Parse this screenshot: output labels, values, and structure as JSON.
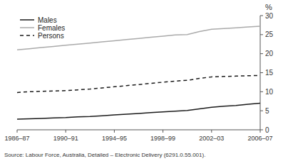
{
  "chart_data": {
    "type": "line",
    "x": [
      1987,
      1988,
      1989,
      1990,
      1991,
      1992,
      1993,
      1994,
      1995,
      1996,
      1997,
      1998,
      1999,
      2000,
      2001,
      2002,
      2003,
      2004,
      2005,
      2006,
      2007
    ],
    "series": [
      {
        "name": "Males",
        "color": "#1a1a1a",
        "line_style": "solid",
        "values": [
          2.8,
          2.9,
          3.0,
          3.1,
          3.2,
          3.4,
          3.5,
          3.7,
          3.9,
          4.1,
          4.3,
          4.5,
          4.7,
          4.9,
          5.1,
          5.5,
          5.9,
          6.2,
          6.4,
          6.7,
          7.0
        ]
      },
      {
        "name": "Females",
        "color": "#aaaaaa",
        "line_style": "solid",
        "values": [
          21.0,
          21.3,
          21.6,
          21.9,
          22.2,
          22.5,
          22.8,
          23.1,
          23.4,
          23.7,
          24.0,
          24.3,
          24.6,
          24.9,
          25.0,
          25.8,
          26.4,
          26.6,
          26.8,
          27.0,
          27.2
        ]
      },
      {
        "name": "Persons",
        "color": "#1a1a1a",
        "line_style": "dashed",
        "values": [
          9.8,
          10.0,
          10.1,
          10.2,
          10.3,
          10.5,
          10.7,
          11.0,
          11.3,
          11.6,
          11.9,
          12.2,
          12.5,
          12.8,
          13.0,
          13.5,
          13.9,
          14.0,
          14.1,
          14.2,
          14.3
        ]
      }
    ],
    "xlim": [
      1987,
      2007
    ],
    "xticks": [
      {
        "value": 1987,
        "label": "1986–87"
      },
      {
        "value": 1991,
        "label": "1990–91"
      },
      {
        "value": 1995,
        "label": "1994–95"
      },
      {
        "value": 1999,
        "label": "1998–99"
      },
      {
        "value": 2003,
        "label": "2002–03"
      },
      {
        "value": 2007,
        "label": "2006–07"
      }
    ],
    "ylim": [
      0,
      30
    ],
    "yticks": [
      0,
      5,
      10,
      15,
      20,
      25,
      30
    ],
    "y_label": "%",
    "annotations": [
      "Source: Labour Force, Australia, Detailed – Electronic Delivery (6291.0.55.001)."
    ],
    "legend": "upper left",
    "grid": false
  }
}
